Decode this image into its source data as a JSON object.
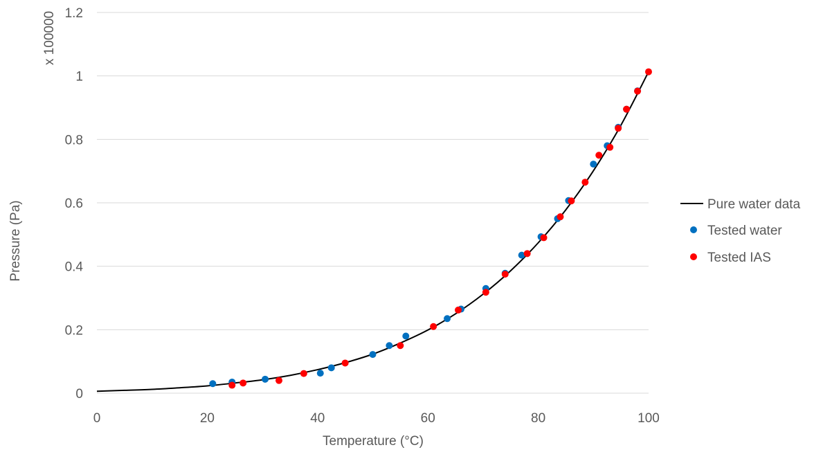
{
  "chart_data": {
    "type": "scatter",
    "xlabel": "Temperature (°C)",
    "ylabel": "Pressure (Pa)",
    "y_multiplier_label": "x 100000",
    "xlim": [
      0,
      100
    ],
    "ylim": [
      0,
      1.2
    ],
    "x_ticks": [
      0,
      20,
      40,
      60,
      80,
      100
    ],
    "y_ticks": [
      "0",
      "0.2",
      "0.4",
      "0.6",
      "0.8",
      "1",
      "1.2"
    ],
    "grid": "horizontal",
    "legend_position": "right",
    "colors": {
      "line": "#000000",
      "water": "#0070C0",
      "ias": "#FF0000",
      "grid": "#D9D9D9",
      "text": "#595959"
    },
    "series": [
      {
        "name": "Pure water data",
        "style": "line",
        "x": [
          0,
          5,
          10,
          15,
          20,
          25,
          30,
          35,
          40,
          45,
          50,
          55,
          60,
          65,
          70,
          75,
          80,
          85,
          90,
          95,
          100
        ],
        "y": [
          0.006,
          0.009,
          0.012,
          0.017,
          0.023,
          0.032,
          0.042,
          0.056,
          0.074,
          0.096,
          0.123,
          0.158,
          0.199,
          0.25,
          0.312,
          0.386,
          0.474,
          0.578,
          0.701,
          0.845,
          1.013
        ]
      },
      {
        "name": "Tested water",
        "style": "scatter",
        "x": [
          21,
          24.5,
          30.5,
          40.5,
          42.5,
          50,
          53,
          56,
          63.5,
          66,
          70.5,
          74,
          77,
          80.5,
          83.5,
          85.5,
          90,
          92.5,
          94.5,
          96,
          98
        ],
        "y": [
          0.03,
          0.035,
          0.044,
          0.063,
          0.08,
          0.122,
          0.15,
          0.18,
          0.235,
          0.265,
          0.33,
          0.378,
          0.435,
          0.493,
          0.55,
          0.607,
          0.722,
          0.78,
          0.838,
          0.895,
          0.953
        ]
      },
      {
        "name": "Tested IAS",
        "style": "scatter",
        "x": [
          24.5,
          26.5,
          33,
          37.5,
          45,
          55,
          61,
          65.5,
          70.5,
          74,
          78,
          81,
          84,
          86,
          88.5,
          91,
          93,
          94.5,
          96,
          98,
          100
        ],
        "y": [
          0.025,
          0.032,
          0.04,
          0.062,
          0.095,
          0.15,
          0.21,
          0.262,
          0.318,
          0.375,
          0.44,
          0.49,
          0.556,
          0.606,
          0.665,
          0.75,
          0.775,
          0.835,
          0.895,
          0.952,
          1.013
        ]
      }
    ]
  }
}
